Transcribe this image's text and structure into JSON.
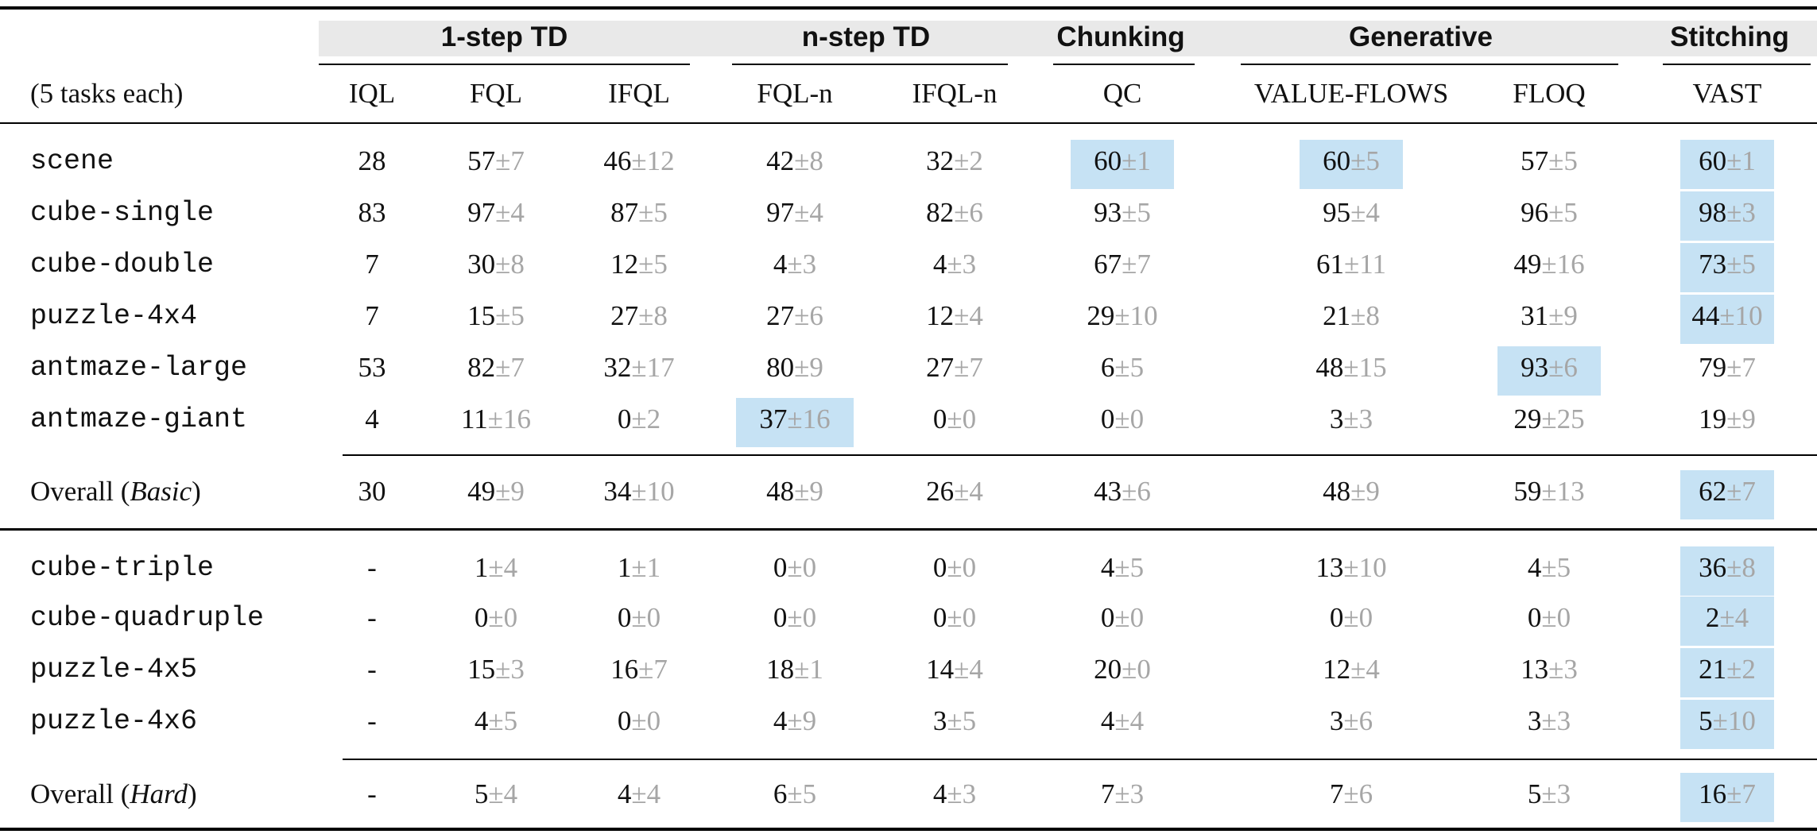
{
  "groups": [
    {
      "label": "1-step TD"
    },
    {
      "label": "n-step TD"
    },
    {
      "label": "Chunking"
    },
    {
      "label": "Generative"
    },
    {
      "label": "Stitching"
    }
  ],
  "corner_label": "(5 tasks each)",
  "columns": [
    "IQL",
    "FQL",
    "IFQL",
    "FQL-n",
    "IFQL-n",
    "QC",
    "VALUE-FLOWS",
    "FLOQ",
    "VAST"
  ],
  "pm_symbol": "±",
  "highlight_color": "#c6e2f4",
  "basic_rows": [
    {
      "task": "scene",
      "cells": [
        [
          "28",
          ""
        ],
        [
          "57",
          "7"
        ],
        [
          "46",
          "12"
        ],
        [
          "42",
          "8"
        ],
        [
          "32",
          "2"
        ],
        [
          "60",
          "1"
        ],
        [
          "60",
          "5"
        ],
        [
          "57",
          "5"
        ],
        [
          "60",
          "1"
        ]
      ],
      "hl": [
        5,
        6,
        8
      ]
    },
    {
      "task": "cube-single",
      "cells": [
        [
          "83",
          ""
        ],
        [
          "97",
          "4"
        ],
        [
          "87",
          "5"
        ],
        [
          "97",
          "4"
        ],
        [
          "82",
          "6"
        ],
        [
          "93",
          "5"
        ],
        [
          "95",
          "4"
        ],
        [
          "96",
          "5"
        ],
        [
          "98",
          "3"
        ]
      ],
      "hl": [
        8
      ]
    },
    {
      "task": "cube-double",
      "cells": [
        [
          "7",
          ""
        ],
        [
          "30",
          "8"
        ],
        [
          "12",
          "5"
        ],
        [
          "4",
          "3"
        ],
        [
          "4",
          "3"
        ],
        [
          "67",
          "7"
        ],
        [
          "61",
          "11"
        ],
        [
          "49",
          "16"
        ],
        [
          "73",
          "5"
        ]
      ],
      "hl": [
        8
      ]
    },
    {
      "task": "puzzle-4x4",
      "cells": [
        [
          "7",
          ""
        ],
        [
          "15",
          "5"
        ],
        [
          "27",
          "8"
        ],
        [
          "27",
          "6"
        ],
        [
          "12",
          "4"
        ],
        [
          "29",
          "10"
        ],
        [
          "21",
          "8"
        ],
        [
          "31",
          "9"
        ],
        [
          "44",
          "10"
        ]
      ],
      "hl": [
        8
      ]
    },
    {
      "task": "antmaze-large",
      "cells": [
        [
          "53",
          ""
        ],
        [
          "82",
          "7"
        ],
        [
          "32",
          "17"
        ],
        [
          "80",
          "9"
        ],
        [
          "27",
          "7"
        ],
        [
          "6",
          "5"
        ],
        [
          "48",
          "15"
        ],
        [
          "93",
          "6"
        ],
        [
          "79",
          "7"
        ]
      ],
      "hl": [
        7
      ]
    },
    {
      "task": "antmaze-giant",
      "cells": [
        [
          "4",
          ""
        ],
        [
          "11",
          "16"
        ],
        [
          "0",
          "2"
        ],
        [
          "37",
          "16"
        ],
        [
          "0",
          "0"
        ],
        [
          "0",
          "0"
        ],
        [
          "3",
          "3"
        ],
        [
          "29",
          "25"
        ],
        [
          "19",
          "9"
        ]
      ],
      "hl": [
        3
      ]
    }
  ],
  "overall_basic": {
    "label_prefix": "Overall (",
    "label_italic": "Basic",
    "label_suffix": ")",
    "cells": [
      [
        "30",
        ""
      ],
      [
        "49",
        "9"
      ],
      [
        "34",
        "10"
      ],
      [
        "48",
        "9"
      ],
      [
        "26",
        "4"
      ],
      [
        "43",
        "6"
      ],
      [
        "48",
        "9"
      ],
      [
        "59",
        "13"
      ],
      [
        "62",
        "7"
      ]
    ],
    "hl": [
      8
    ]
  },
  "hard_rows": [
    {
      "task": "cube-triple",
      "cells": [
        [
          "-",
          ""
        ],
        [
          "1",
          "4"
        ],
        [
          "1",
          "1"
        ],
        [
          "0",
          "0"
        ],
        [
          "0",
          "0"
        ],
        [
          "4",
          "5"
        ],
        [
          "13",
          "10"
        ],
        [
          "4",
          "5"
        ],
        [
          "36",
          "8"
        ]
      ],
      "hl": [
        8
      ]
    },
    {
      "task": "cube-quadruple",
      "cells": [
        [
          "-",
          ""
        ],
        [
          "0",
          "0"
        ],
        [
          "0",
          "0"
        ],
        [
          "0",
          "0"
        ],
        [
          "0",
          "0"
        ],
        [
          "0",
          "0"
        ],
        [
          "0",
          "0"
        ],
        [
          "0",
          "0"
        ],
        [
          "2",
          "4"
        ]
      ],
      "hl": [
        8
      ]
    },
    {
      "task": "puzzle-4x5",
      "cells": [
        [
          "-",
          ""
        ],
        [
          "15",
          "3"
        ],
        [
          "16",
          "7"
        ],
        [
          "18",
          "1"
        ],
        [
          "14",
          "4"
        ],
        [
          "20",
          "0"
        ],
        [
          "12",
          "4"
        ],
        [
          "13",
          "3"
        ],
        [
          "21",
          "2"
        ]
      ],
      "hl": [
        8
      ]
    },
    {
      "task": "puzzle-4x6",
      "cells": [
        [
          "-",
          ""
        ],
        [
          "4",
          "5"
        ],
        [
          "0",
          "0"
        ],
        [
          "4",
          "9"
        ],
        [
          "3",
          "5"
        ],
        [
          "4",
          "4"
        ],
        [
          "3",
          "6"
        ],
        [
          "3",
          "3"
        ],
        [
          "5",
          "10"
        ]
      ],
      "hl": [
        8
      ]
    }
  ],
  "overall_hard": {
    "label_prefix": "Overall (",
    "label_italic": "Hard",
    "label_suffix": ")",
    "cells": [
      [
        "-",
        ""
      ],
      [
        "5",
        "4"
      ],
      [
        "4",
        "4"
      ],
      [
        "6",
        "5"
      ],
      [
        "4",
        "3"
      ],
      [
        "7",
        "3"
      ],
      [
        "7",
        "6"
      ],
      [
        "5",
        "3"
      ],
      [
        "16",
        "7"
      ]
    ],
    "hl": [
      8
    ]
  }
}
